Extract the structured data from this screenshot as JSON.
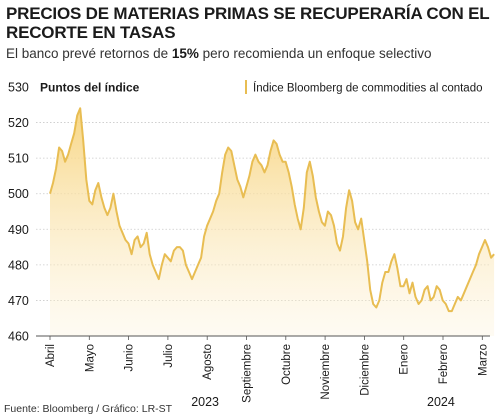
{
  "header": {
    "title": "PRECIOS DE MATERIAS PRIMAS SE RECUPERARÍA CON EL RECORTE EN TASAS",
    "subtitle_before": "El banco prevé retornos de ",
    "subtitle_bold": "15%",
    "subtitle_after": " pero recomienda un enfoque selectivo"
  },
  "source": "Fuente: Bloomberg / Gráfico: LR-ST",
  "colors": {
    "line": "#e8bd52",
    "area_top": "#f7d47e",
    "area_bottom": "#fdf3dc",
    "grid": "#c9c9c9",
    "text": "#1a1a1a"
  },
  "chart_data": {
    "type": "area",
    "title": "PRECIOS DE MATERIAS PRIMAS SE RECUPERARÍA CON EL RECORTE EN TASAS",
    "ylabel": "Puntos del índice",
    "ylim": [
      460,
      530
    ],
    "yticks": [
      530,
      520,
      510,
      500,
      490,
      480,
      470,
      460
    ],
    "grid": true,
    "legend": {
      "position": "top-right",
      "entries": [
        "Índice Bloomberg de commodities al contado"
      ]
    },
    "months": [
      "Abril",
      "Mayo",
      "Junio",
      "Julio",
      "Agosto",
      "Septiembre",
      "Octubre",
      "Noviembre",
      "Diciembre",
      "Enero",
      "Febrero",
      "Marzo"
    ],
    "year_labels": [
      {
        "label": "2023",
        "month_index": 4
      },
      {
        "label": "2024",
        "month_index": 10
      }
    ],
    "series": [
      {
        "name": "Índice Bloomberg de commodities al contado",
        "x_start_month": 0,
        "x_end_month": 11.3,
        "values": [
          500,
          503,
          507,
          513,
          512,
          509,
          511,
          514,
          517,
          522,
          524,
          515,
          504,
          498,
          497,
          501,
          503,
          499,
          496,
          494,
          496,
          500,
          495,
          491,
          489,
          487,
          486,
          483,
          487,
          488,
          485,
          486,
          489,
          483,
          480,
          478,
          476,
          480,
          483,
          482,
          481,
          484,
          485,
          485,
          484,
          480,
          478,
          476,
          478,
          480,
          482,
          488,
          491,
          493,
          495,
          498,
          500,
          506,
          511,
          513,
          512,
          508,
          504,
          502,
          499,
          502,
          505,
          509,
          511,
          509,
          508,
          506,
          508,
          512,
          515,
          514,
          511,
          509,
          509,
          506,
          502,
          497,
          493,
          490,
          496,
          506,
          509,
          505,
          499,
          495,
          492,
          491,
          495,
          494,
          491,
          486,
          484,
          488,
          496,
          501,
          498,
          492,
          490,
          493,
          487,
          481,
          473,
          469,
          468,
          470,
          475,
          478,
          478,
          481,
          483,
          479,
          474,
          474,
          476,
          472,
          475,
          471,
          469,
          470,
          473,
          474,
          470,
          471,
          474,
          473,
          470,
          469,
          467,
          467,
          469,
          471,
          470,
          472,
          474,
          476,
          478,
          480,
          483,
          485,
          487,
          485,
          482,
          483
        ]
      }
    ]
  }
}
